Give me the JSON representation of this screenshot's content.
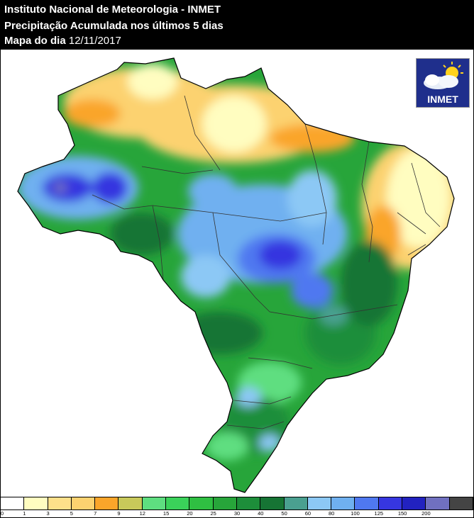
{
  "header": {
    "line1": "Instituto Nacional de Meteorologia - INMET",
    "line2": "Precipitação Acumulada nos últimos 5 dias",
    "line3_label": "Mapa do dia",
    "line3_date": "12/11/2017"
  },
  "logo": {
    "text": "INMET",
    "icon": "sun-cloud-icon"
  },
  "legend": {
    "colors": [
      "#ffffff",
      "#fffdc0",
      "#fde08a",
      "#fcd270",
      "#faa52a",
      "#c8c95a",
      "#5ede80",
      "#3ad25a",
      "#2fbf42",
      "#27a53a",
      "#1d8e3a",
      "#167434",
      "#4aa090",
      "#8cc8f5",
      "#6fb0f0",
      "#4f78f0",
      "#3636e0",
      "#2222c0",
      "#7070c0",
      "#444444"
    ],
    "ticks": [
      "0",
      "1",
      "3",
      "5",
      "7",
      "9",
      "12",
      "15",
      "20",
      "25",
      "30",
      "40",
      "50",
      "60",
      "80",
      "100",
      "125",
      "150",
      "200"
    ]
  }
}
